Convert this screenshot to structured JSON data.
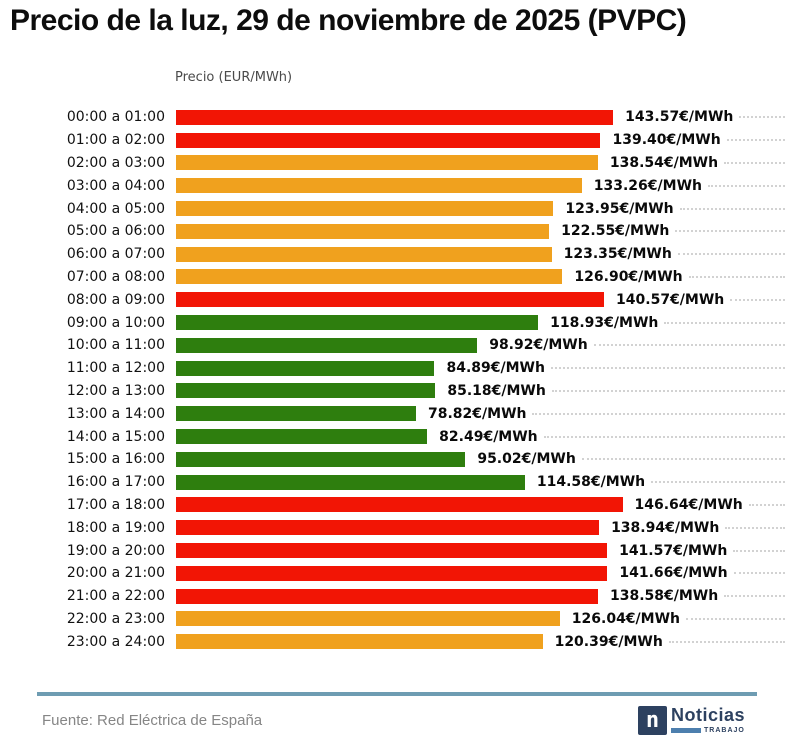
{
  "title": "Precio de la luz, 29 de noviembre de 2025 (PVPC)",
  "subtitle": "Precio (EUR/MWh)",
  "footer": {
    "source": "Fuente: Red Eléctrica de España",
    "logo": {
      "icon_letter": "n",
      "name": "Noticias",
      "tagline": "TRABAJO"
    }
  },
  "colors": {
    "red": "#f21505",
    "orange": "#f0a11e",
    "green": "#2e7e0e",
    "divider": "#6e9cb2",
    "grid": "#d2d2d2",
    "navy": "#2d4160",
    "logo_blue": "#4d7fae"
  },
  "chart_data": {
    "type": "bar",
    "orientation": "horizontal",
    "title": "Precio de la luz, 29 de noviembre de 2025 (PVPC)",
    "xlabel": "Precio (EUR/MWh)",
    "xlim": [
      0,
      200
    ],
    "grid": "horizontal dotted leader lines to right edge",
    "legend": "none",
    "categories": [
      "00:00 a 01:00",
      "01:00 a 02:00",
      "02:00 a 03:00",
      "03:00 a 04:00",
      "04:00 a 05:00",
      "05:00 a 06:00",
      "06:00 a 07:00",
      "07:00 a 08:00",
      "08:00 a 09:00",
      "09:00 a 10:00",
      "10:00 a 11:00",
      "11:00 a 12:00",
      "12:00 a 13:00",
      "13:00 a 14:00",
      "14:00 a 15:00",
      "15:00 a 16:00",
      "16:00 a 17:00",
      "17:00 a 18:00",
      "18:00 a 19:00",
      "19:00 a 20:00",
      "20:00 a 21:00",
      "21:00 a 22:00",
      "22:00 a 23:00",
      "23:00 a 24:00"
    ],
    "values": [
      143.57,
      139.4,
      138.54,
      133.26,
      123.95,
      122.55,
      123.35,
      126.9,
      140.57,
      118.93,
      98.92,
      84.89,
      85.18,
      78.82,
      82.49,
      95.02,
      114.58,
      146.64,
      138.94,
      141.57,
      141.66,
      138.58,
      126.04,
      120.39
    ],
    "labels": [
      "143.57€/MWh",
      "139.40€/MWh",
      "138.54€/MWh",
      "133.26€/MWh",
      "123.95€/MWh",
      "122.55€/MWh",
      "123.35€/MWh",
      "126.90€/MWh",
      "140.57€/MWh",
      "118.93€/MWh",
      "98.92€/MWh",
      "84.89€/MWh",
      "85.18€/MWh",
      "78.82€/MWh",
      "82.49€/MWh",
      "95.02€/MWh",
      "114.58€/MWh",
      "146.64€/MWh",
      "138.94€/MWh",
      "141.57€/MWh",
      "141.66€/MWh",
      "138.58€/MWh",
      "126.04€/MWh",
      "120.39€/MWh"
    ],
    "bar_colors": [
      "red",
      "red",
      "orange",
      "orange",
      "orange",
      "orange",
      "orange",
      "orange",
      "red",
      "green",
      "green",
      "green",
      "green",
      "green",
      "green",
      "green",
      "green",
      "red",
      "red",
      "red",
      "red",
      "red",
      "orange",
      "orange"
    ]
  }
}
